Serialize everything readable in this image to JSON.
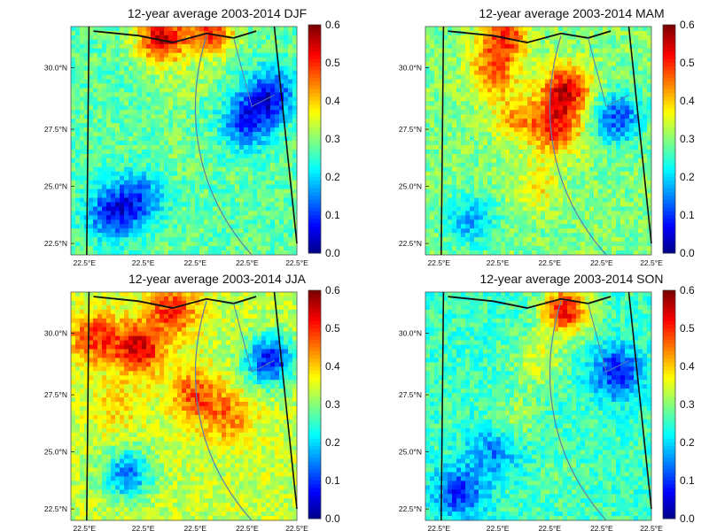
{
  "maps": [
    {
      "title": "12-year average 2003-2014 DJF",
      "season": "DJF",
      "value_range": [
        0.0,
        0.6
      ],
      "mean_level": 0.28,
      "hotspots": [
        {
          "lon": 0.88,
          "lat": 0.3,
          "value": 0.08
        },
        {
          "lon": 0.78,
          "lat": 0.42,
          "value": 0.1
        },
        {
          "lon": 0.18,
          "lat": 0.82,
          "value": 0.1
        },
        {
          "lon": 0.3,
          "lat": 0.75,
          "value": 0.13
        },
        {
          "lon": 0.5,
          "lat": 0.25,
          "value": 0.32
        },
        {
          "lon": 0.45,
          "lat": 0.55,
          "value": 0.3
        },
        {
          "lon": 0.4,
          "lat": 0.05,
          "value": 0.55
        },
        {
          "lon": 0.62,
          "lat": 0.02,
          "value": 0.5
        }
      ]
    },
    {
      "title": "12-year average 2003-2014 MAM",
      "season": "MAM",
      "value_range": [
        0.0,
        0.6
      ],
      "mean_level": 0.3,
      "hotspots": [
        {
          "lon": 0.62,
          "lat": 0.28,
          "value": 0.55
        },
        {
          "lon": 0.58,
          "lat": 0.45,
          "value": 0.5
        },
        {
          "lon": 0.3,
          "lat": 0.2,
          "value": 0.45
        },
        {
          "lon": 0.4,
          "lat": 0.4,
          "value": 0.42
        },
        {
          "lon": 0.85,
          "lat": 0.4,
          "value": 0.12
        },
        {
          "lon": 0.2,
          "lat": 0.85,
          "value": 0.18
        },
        {
          "lon": 0.5,
          "lat": 0.7,
          "value": 0.38
        },
        {
          "lon": 0.35,
          "lat": 0.04,
          "value": 0.5
        }
      ]
    },
    {
      "title": "12-year average 2003-2014 JJA",
      "season": "JJA",
      "value_range": [
        0.0,
        0.6
      ],
      "mean_level": 0.34,
      "hotspots": [
        {
          "lon": 0.3,
          "lat": 0.25,
          "value": 0.55
        },
        {
          "lon": 0.1,
          "lat": 0.2,
          "value": 0.5
        },
        {
          "lon": 0.55,
          "lat": 0.45,
          "value": 0.48
        },
        {
          "lon": 0.7,
          "lat": 0.55,
          "value": 0.45
        },
        {
          "lon": 0.88,
          "lat": 0.3,
          "value": 0.08
        },
        {
          "lon": 0.25,
          "lat": 0.8,
          "value": 0.15
        },
        {
          "lon": 0.2,
          "lat": 0.5,
          "value": 0.4
        },
        {
          "lon": 0.45,
          "lat": 0.08,
          "value": 0.5
        }
      ]
    },
    {
      "title": "12-year average 2003-2014 SON",
      "season": "SON",
      "value_range": [
        0.0,
        0.6
      ],
      "mean_level": 0.26,
      "hotspots": [
        {
          "lon": 0.62,
          "lat": 0.08,
          "value": 0.52
        },
        {
          "lon": 0.5,
          "lat": 0.3,
          "value": 0.35
        },
        {
          "lon": 0.4,
          "lat": 0.55,
          "value": 0.32
        },
        {
          "lon": 0.85,
          "lat": 0.35,
          "value": 0.08
        },
        {
          "lon": 0.15,
          "lat": 0.88,
          "value": 0.1
        },
        {
          "lon": 0.3,
          "lat": 0.7,
          "value": 0.15
        },
        {
          "lon": 0.6,
          "lat": 0.8,
          "value": 0.28
        }
      ]
    }
  ],
  "y_ticks": [
    "30.0°N",
    "27.5°N",
    "25.0°N",
    "22.5°N"
  ],
  "x_ticks": [
    "22.5°E",
    "22.5°E",
    "22.5°E",
    "22.5°E",
    "22.5°E"
  ],
  "colorbar_ticks": [
    "0.6",
    "0.5",
    "0.4",
    "0.3",
    "0.2",
    "0.1",
    "0.0"
  ],
  "colormap": "jet",
  "colors": {
    "nile": "#5c7fa8",
    "border": "#111111"
  }
}
